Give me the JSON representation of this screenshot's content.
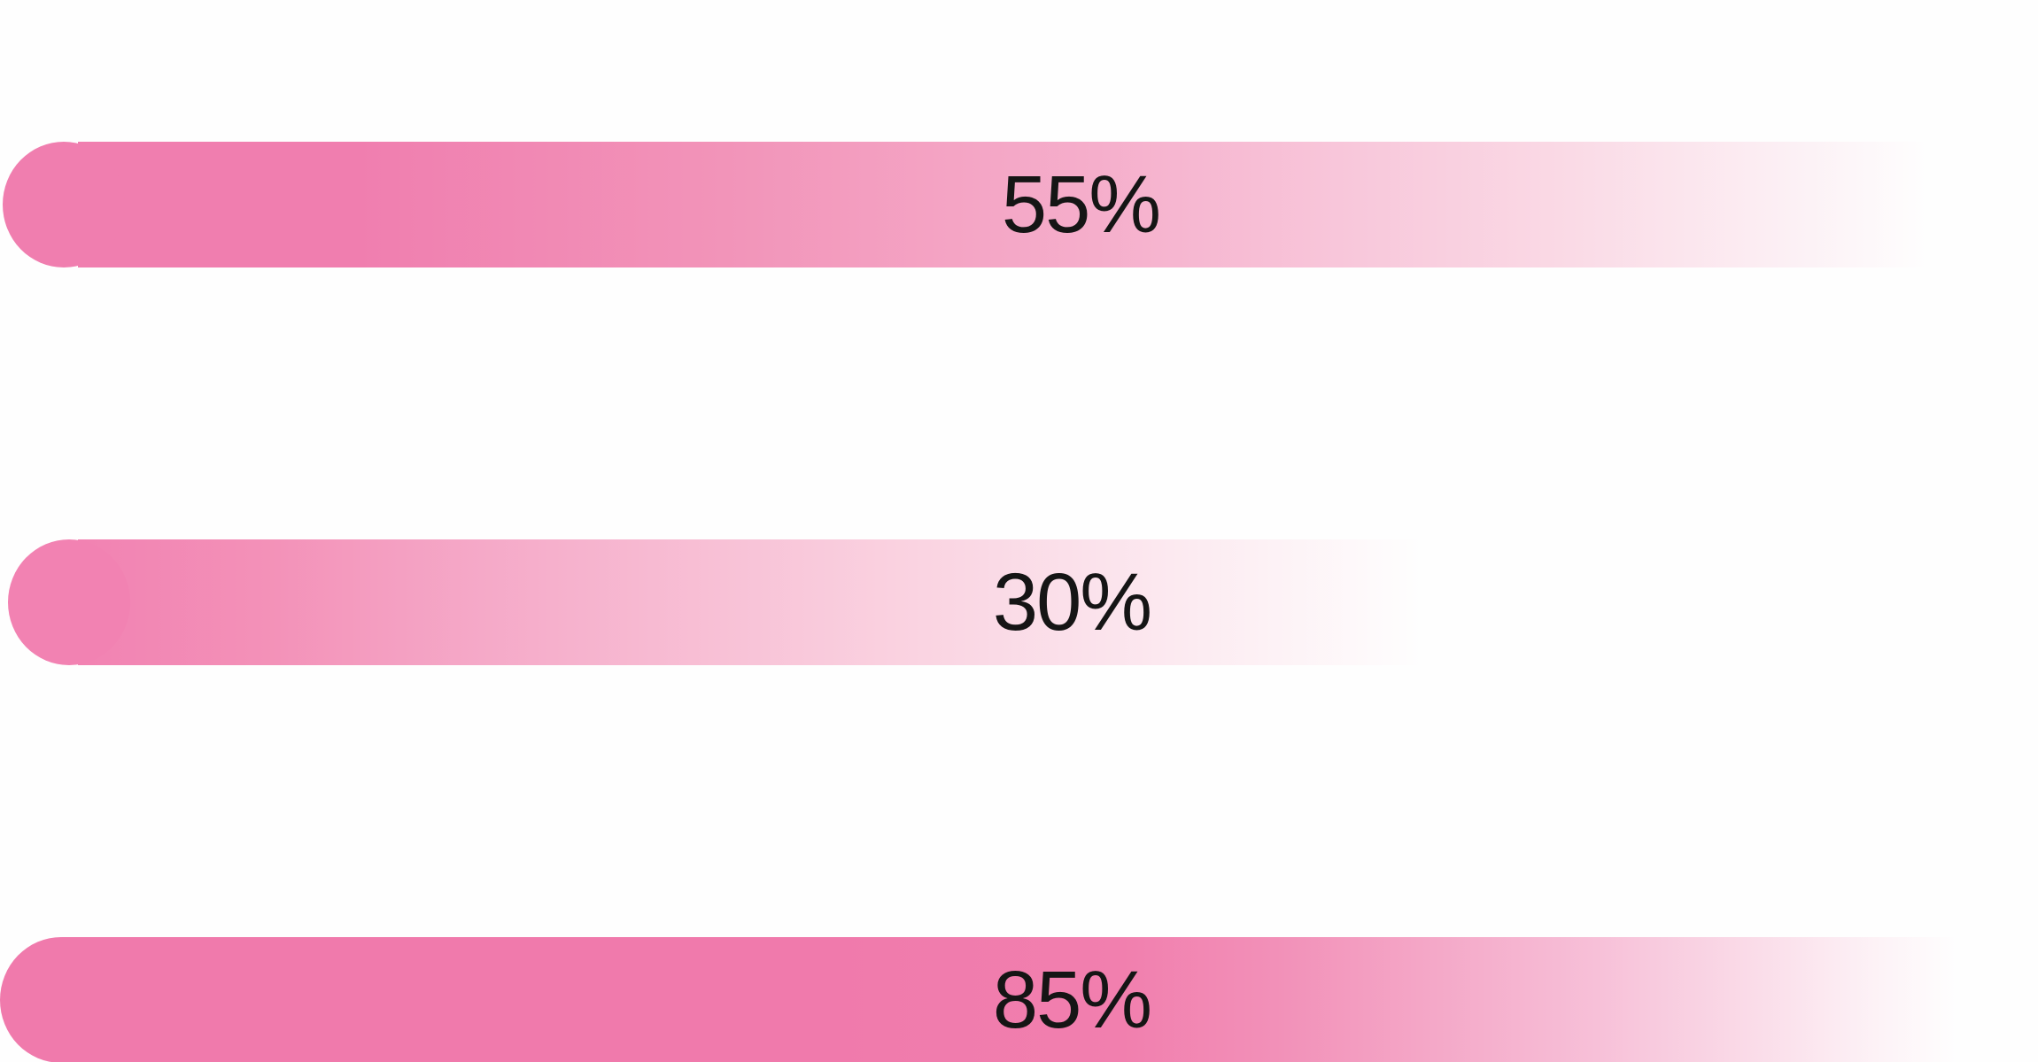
{
  "bars": [
    {
      "label": "55%",
      "value": 55,
      "color": "#f07eaf"
    },
    {
      "label": "30%",
      "value": 30,
      "color": "#f282b2"
    },
    {
      "label": "85%",
      "value": 85,
      "color": "#f07aac"
    }
  ],
  "colors": {
    "background": "#fefefe",
    "accent": "#f07aac",
    "text": "#151515"
  }
}
